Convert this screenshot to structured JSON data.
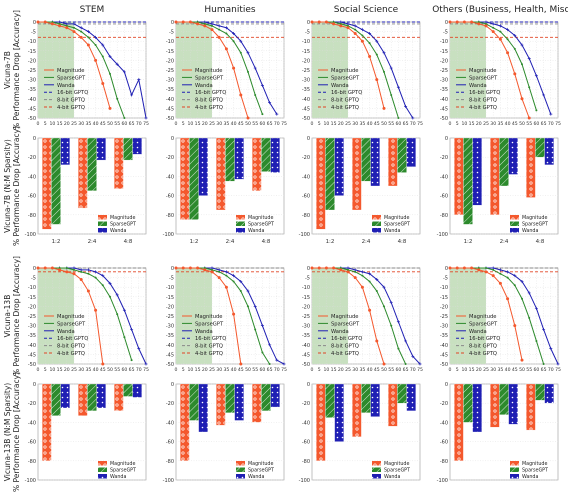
{
  "columns": [
    "STEM",
    "Humanities",
    "Social Science",
    "Others (Business, Health, Misc.)"
  ],
  "rows": [
    {
      "model": "Vicuna-7B",
      "line_ylabel": "% Performance Drop [Accuracy]",
      "bar_ylabel": "Vicuna-7B (N:M Sparsity)",
      "bar_ylabel2": "% Performance Drop [Accuracy]"
    },
    {
      "model": "Vicuna-13B",
      "line_ylabel": "% Performance Drop [Accuracy]",
      "bar_ylabel": "Vicuna-13B (N:M Sparsity)",
      "bar_ylabel2": "% Performance Drop [Accuracy]"
    }
  ],
  "chart_data": {
    "line_charts": {
      "type": "line",
      "x": [
        0,
        5,
        10,
        15,
        20,
        25,
        30,
        35,
        40,
        45,
        50,
        55,
        60,
        65,
        70,
        75
      ],
      "x_ticks": [
        "0",
        "5",
        "10",
        "15",
        "20",
        "25",
        "30",
        "35",
        "40",
        "45",
        "50",
        "55",
        "60",
        "65",
        "70",
        "75"
      ],
      "xlim": [
        0,
        75
      ],
      "ylim": [
        -50,
        0
      ],
      "y_ticks": [
        0,
        -5,
        -10,
        -15,
        -20,
        -25,
        -30,
        -35,
        -40,
        -45,
        -50
      ],
      "legend": [
        "Magnitude",
        "SparseGPT",
        "Wanda",
        "16-bit GPTQ",
        "8-bit GPTQ",
        "4-bit GPTQ"
      ],
      "shaded_region": [
        0,
        25
      ],
      "grid": true,
      "panels": [
        {
          "row": 0,
          "col": 0,
          "gptq16": 0,
          "gptq8": -1,
          "gptq4": -8,
          "magnitude": [
            0,
            0,
            -1,
            -2,
            -3,
            -5,
            -8,
            -12,
            -20,
            -32,
            -45,
            null,
            null,
            null,
            null,
            null
          ],
          "sparsegpt": [
            0,
            0,
            0,
            -1,
            -2,
            -3,
            -5,
            -8,
            -12,
            -18,
            -27,
            -40,
            -50,
            null,
            null,
            null
          ],
          "wanda": [
            0,
            0,
            0,
            0,
            -1,
            -1,
            -3,
            -5,
            -8,
            -12,
            -18,
            -22,
            -26,
            -38,
            -30,
            -50
          ]
        },
        {
          "row": 0,
          "col": 1,
          "gptq16": 0,
          "gptq8": -1,
          "gptq4": -8,
          "magnitude": [
            0,
            0,
            0,
            -1,
            -2,
            -4,
            -8,
            -14,
            -24,
            -38,
            -50,
            null,
            null,
            null,
            null,
            null
          ],
          "sparsegpt": [
            0,
            0,
            0,
            0,
            -1,
            -2,
            -4,
            -6,
            -10,
            -16,
            -26,
            -38,
            -48,
            null,
            null,
            null
          ],
          "wanda": [
            0,
            0,
            0,
            0,
            0,
            -1,
            -2,
            -3,
            -6,
            -10,
            -16,
            -24,
            -33,
            -42,
            -48,
            null
          ]
        },
        {
          "row": 0,
          "col": 2,
          "gptq16": 0,
          "gptq8": -1,
          "gptq4": -8,
          "magnitude": [
            0,
            0,
            0,
            -1,
            -2,
            -3,
            -6,
            -10,
            -18,
            -30,
            -45,
            null,
            null,
            null,
            null,
            null
          ],
          "sparsegpt": [
            0,
            0,
            0,
            0,
            -1,
            -2,
            -4,
            -7,
            -11,
            -17,
            -26,
            -38,
            -50,
            null,
            null,
            null
          ],
          "wanda": [
            0,
            0,
            0,
            0,
            0,
            -1,
            -2,
            -4,
            -6,
            -10,
            -16,
            -24,
            -34,
            -44,
            -50,
            null
          ]
        },
        {
          "row": 0,
          "col": 3,
          "gptq16": 0,
          "gptq8": -1,
          "gptq4": -8,
          "magnitude": [
            0,
            0,
            0,
            0,
            -1,
            -2,
            -5,
            -9,
            -16,
            -27,
            -40,
            -50,
            null,
            null,
            null,
            null
          ],
          "sparsegpt": [
            0,
            0,
            0,
            0,
            0,
            -1,
            -3,
            -5,
            -9,
            -14,
            -22,
            -34,
            -46,
            null,
            null,
            null
          ],
          "wanda": [
            0,
            0,
            0,
            0,
            0,
            0,
            -1,
            -2,
            -4,
            -7,
            -12,
            -19,
            -28,
            -38,
            -48,
            null
          ]
        },
        {
          "row": 1,
          "col": 0,
          "gptq16": 0,
          "gptq8": 0,
          "gptq4": -2,
          "magnitude": [
            0,
            0,
            0,
            -1,
            -2,
            -3,
            -6,
            -12,
            -22,
            -50,
            null,
            null,
            null,
            null,
            null,
            null
          ],
          "sparsegpt": [
            0,
            0,
            0,
            0,
            0,
            -1,
            -2,
            -3,
            -5,
            -9,
            -15,
            -24,
            -36,
            -48,
            null,
            null
          ],
          "wanda": [
            0,
            0,
            0,
            0,
            0,
            0,
            -1,
            -1,
            -2,
            -4,
            -8,
            -14,
            -22,
            -32,
            -42,
            -50
          ]
        },
        {
          "row": 1,
          "col": 1,
          "gptq16": 0,
          "gptq8": 0,
          "gptq4": -2,
          "magnitude": [
            0,
            0,
            0,
            0,
            -1,
            -2,
            -5,
            -10,
            -24,
            -50,
            null,
            null,
            null,
            null,
            null,
            null
          ],
          "sparsegpt": [
            0,
            0,
            0,
            0,
            0,
            -1,
            -2,
            -4,
            -7,
            -12,
            -20,
            -32,
            -44,
            -50,
            null,
            null
          ],
          "wanda": [
            0,
            0,
            0,
            0,
            0,
            0,
            -1,
            -2,
            -4,
            -7,
            -12,
            -20,
            -30,
            -40,
            -48,
            -50
          ]
        },
        {
          "row": 1,
          "col": 2,
          "gptq16": 0,
          "gptq8": 0,
          "gptq4": -2,
          "magnitude": [
            0,
            0,
            0,
            0,
            -1,
            -2,
            -5,
            -10,
            -22,
            -38,
            -50,
            null,
            null,
            null,
            null,
            null
          ],
          "sparsegpt": [
            0,
            0,
            0,
            0,
            0,
            -1,
            -2,
            -4,
            -7,
            -12,
            -20,
            -30,
            -42,
            -50,
            null,
            null
          ],
          "wanda": [
            0,
            0,
            0,
            0,
            0,
            0,
            -1,
            -2,
            -3,
            -6,
            -10,
            -18,
            -28,
            -38,
            -46,
            -50
          ]
        },
        {
          "row": 1,
          "col": 3,
          "gptq16": 0,
          "gptq8": 0,
          "gptq4": -2,
          "magnitude": [
            0,
            0,
            0,
            0,
            -1,
            -2,
            -4,
            -8,
            -16,
            -30,
            -48,
            null,
            null,
            null,
            null,
            null
          ],
          "sparsegpt": [
            0,
            0,
            0,
            0,
            0,
            0,
            -1,
            -3,
            -5,
            -9,
            -16,
            -26,
            -38,
            -50,
            null,
            null
          ],
          "wanda": [
            0,
            0,
            0,
            0,
            0,
            0,
            0,
            -1,
            -2,
            -4,
            -7,
            -13,
            -21,
            -32,
            -42,
            -50
          ]
        }
      ]
    },
    "bar_charts": {
      "type": "bar",
      "categories": [
        "1:2",
        "2:4",
        "4:8"
      ],
      "ylim": [
        -100,
        0
      ],
      "y_ticks": [
        0,
        -20,
        -40,
        -60,
        -80,
        -100
      ],
      "legend": [
        "Magnitude",
        "SparseGPT",
        "Wanda"
      ],
      "panels": [
        {
          "row": 0,
          "col": 0,
          "magnitude": [
            -95,
            -73,
            -53
          ],
          "sparsegpt": [
            -90,
            -55,
            -23
          ],
          "wanda": [
            -28,
            -23,
            -17
          ]
        },
        {
          "row": 0,
          "col": 1,
          "magnitude": [
            -85,
            -75,
            -55
          ],
          "sparsegpt": [
            -85,
            -45,
            -35
          ],
          "wanda": [
            -60,
            -43,
            -36
          ]
        },
        {
          "row": 0,
          "col": 2,
          "magnitude": [
            -95,
            -75,
            -50
          ],
          "sparsegpt": [
            -75,
            -45,
            -36
          ],
          "wanda": [
            -60,
            -50,
            -30
          ]
        },
        {
          "row": 0,
          "col": 3,
          "magnitude": [
            -80,
            -80,
            -62
          ],
          "sparsegpt": [
            -90,
            -50,
            -20
          ],
          "wanda": [
            -70,
            -38,
            -28
          ]
        },
        {
          "row": 1,
          "col": 0,
          "magnitude": [
            -80,
            -33,
            -28
          ],
          "sparsegpt": [
            -33,
            -28,
            -13
          ],
          "wanda": [
            -25,
            -25,
            -14
          ]
        },
        {
          "row": 1,
          "col": 1,
          "magnitude": [
            -80,
            -43,
            -40
          ],
          "sparsegpt": [
            -38,
            -30,
            -28
          ],
          "wanda": [
            -50,
            -38,
            -24
          ]
        },
        {
          "row": 1,
          "col": 2,
          "magnitude": [
            -80,
            -55,
            -44
          ],
          "sparsegpt": [
            -35,
            -30,
            -20
          ],
          "wanda": [
            -60,
            -34,
            -28
          ]
        },
        {
          "row": 1,
          "col": 3,
          "magnitude": [
            -80,
            -45,
            -48
          ],
          "sparsegpt": [
            -40,
            -32,
            -17
          ],
          "wanda": [
            -50,
            -42,
            -20
          ]
        }
      ]
    },
    "colors": {
      "magnitude": "#f4582d",
      "sparsegpt": "#2c8a2c",
      "wanda": "#1f1fb3",
      "gptq16": "#1f1fb3",
      "gptq8": "#888888",
      "gptq4": "#e14424",
      "shade": "#c8e0c0",
      "grid": "#dcdcdc"
    }
  }
}
